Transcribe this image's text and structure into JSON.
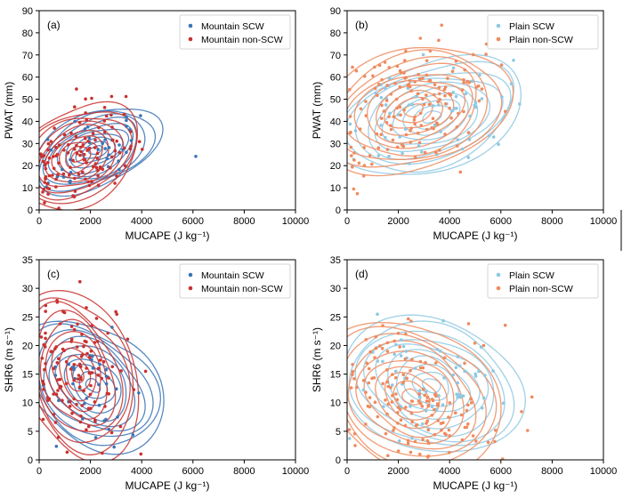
{
  "chart_data": [
    {
      "type": "scatter",
      "panel": "(a)",
      "xlabel": "MUCAPE (J kg⁻¹)",
      "ylabel": "PWAT (mm)",
      "xlim": [
        0,
        10000
      ],
      "ylim": [
        0,
        90
      ],
      "xticks": [
        0,
        2000,
        4000,
        6000,
        8000,
        10000
      ],
      "yticks": [
        0,
        10,
        20,
        30,
        40,
        50,
        60,
        70,
        80,
        90
      ],
      "legend_position": "top-right",
      "series": [
        {
          "name": "Mountain SCW",
          "color": "#3a74b6",
          "marker": "dot",
          "center": [
            2200,
            27
          ],
          "spread": [
            1100,
            9
          ],
          "tilt": 0.45,
          "count": 38,
          "seed": 11,
          "kde_levels": 10,
          "kde_scale": [
            2.1,
            2.1
          ]
        },
        {
          "name": "Mountain non-SCW",
          "color": "#c8312f",
          "marker": "dot",
          "center": [
            1500,
            24
          ],
          "spread": [
            1000,
            10
          ],
          "tilt": 0.35,
          "count": 120,
          "seed": 23,
          "kde_levels": 10,
          "kde_scale": [
            2.3,
            2.4
          ]
        }
      ]
    },
    {
      "type": "scatter",
      "panel": "(b)",
      "xlabel": "MUCAPE (J kg⁻¹)",
      "ylabel": "PWAT (mm)",
      "xlim": [
        0,
        10000
      ],
      "ylim": [
        0,
        90
      ],
      "xticks": [
        0,
        2000,
        4000,
        6000,
        8000,
        10000
      ],
      "yticks": [
        0,
        10,
        20,
        30,
        40,
        50,
        60,
        70,
        80,
        90
      ],
      "legend_position": "top-right",
      "series": [
        {
          "name": "Plain SCW",
          "color": "#8ec8e3",
          "marker": "dot",
          "center": [
            3300,
            42
          ],
          "spread": [
            1500,
            12
          ],
          "tilt": 0.4,
          "count": 60,
          "seed": 37,
          "kde_levels": 10,
          "kde_scale": [
            2.3,
            2.2
          ]
        },
        {
          "name": "Plain non-SCW",
          "color": "#f08a5d",
          "marker": "dot",
          "center": [
            2600,
            45
          ],
          "spread": [
            1600,
            14
          ],
          "tilt": 0.3,
          "count": 150,
          "seed": 41,
          "kde_levels": 10,
          "kde_scale": [
            2.2,
            2.1
          ]
        }
      ]
    },
    {
      "type": "scatter",
      "panel": "(c)",
      "xlabel": "MUCAPE (J kg⁻¹)",
      "ylabel": "SHR6 (m s⁻¹)",
      "xlim": [
        0,
        10000
      ],
      "ylim": [
        0,
        35
      ],
      "xticks": [
        0,
        2000,
        4000,
        6000,
        8000,
        10000
      ],
      "yticks": [
        0,
        5,
        10,
        15,
        20,
        25,
        30,
        35
      ],
      "legend_position": "top-right",
      "series": [
        {
          "name": "Mountain SCW",
          "color": "#3a74b6",
          "marker": "dot",
          "center": [
            2100,
            13
          ],
          "spread": [
            1100,
            5
          ],
          "tilt": -0.2,
          "count": 38,
          "seed": 53,
          "kde_levels": 10,
          "kde_scale": [
            2.4,
            2.3
          ]
        },
        {
          "name": "Mountain non-SCW",
          "color": "#c8312f",
          "marker": "dot",
          "center": [
            1500,
            15
          ],
          "spread": [
            1000,
            6
          ],
          "tilt": -0.15,
          "count": 120,
          "seed": 67,
          "kde_levels": 10,
          "kde_scale": [
            2.3,
            2.5
          ]
        }
      ]
    },
    {
      "type": "scatter",
      "panel": "(d)",
      "xlabel": "MUCAPE (J kg⁻¹)",
      "ylabel": "SHR6 (m s⁻¹)",
      "xlim": [
        0,
        10000
      ],
      "ylim": [
        0,
        35
      ],
      "xticks": [
        0,
        2000,
        4000,
        6000,
        8000,
        10000
      ],
      "yticks": [
        0,
        5,
        10,
        15,
        20,
        25,
        30,
        35
      ],
      "legend_position": "top-right",
      "series": [
        {
          "name": "Plain SCW",
          "color": "#8ec8e3",
          "marker": "dot",
          "center": [
            3300,
            13
          ],
          "spread": [
            1500,
            5
          ],
          "tilt": -0.1,
          "count": 60,
          "seed": 71,
          "kde_levels": 10,
          "kde_scale": [
            2.3,
            2.4
          ]
        },
        {
          "name": "Plain non-SCW",
          "color": "#f08a5d",
          "marker": "dot",
          "center": [
            2500,
            11
          ],
          "spread": [
            1500,
            5.5
          ],
          "tilt": -0.1,
          "count": 150,
          "seed": 83,
          "kde_levels": 10,
          "kde_scale": [
            2.3,
            2.4
          ]
        }
      ]
    }
  ]
}
